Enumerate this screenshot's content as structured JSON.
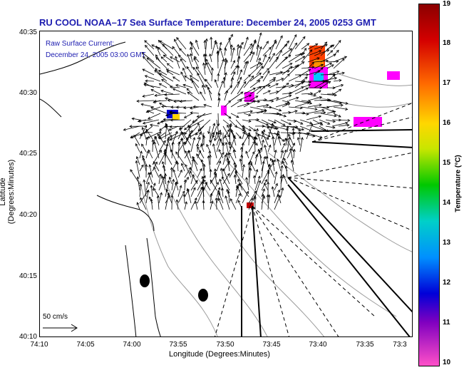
{
  "title": "RU COOL   NOAA–17  Sea Surface Temperature:  December 24, 2005 0253 GMT",
  "overlay": {
    "line1": "Raw Surface Current:",
    "line2": "December 24, 2005 03:00 GMT"
  },
  "axes": {
    "xlabel": "Longitude (Degrees:Minutes)",
    "ylabel": "Latitude (Degrees:Minutes)",
    "yticks": [
      "40:35",
      "40:30",
      "40:25",
      "40:20",
      "40:15",
      "40:10"
    ],
    "xticks": [
      "74:10",
      "74:05",
      "74:00",
      "73:55",
      "73:50",
      "73:45",
      "73:40",
      "73:35",
      "73:3"
    ]
  },
  "scale": {
    "label": "50 cm/s"
  },
  "colorbar": {
    "title": "Temperature (°C)",
    "ticks": [
      "19",
      "18",
      "17",
      "16",
      "15",
      "14",
      "13",
      "12",
      "11",
      "10"
    ],
    "min": 10,
    "max": 19
  }
}
